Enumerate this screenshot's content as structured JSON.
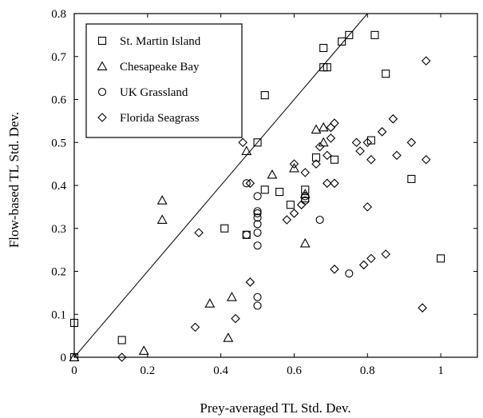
{
  "chart_data": {
    "type": "scatter",
    "xlabel": "Prey-averaged TL Std. Dev.",
    "ylabel": "Flow-based TL Std. Dev.",
    "xlim": [
      0,
      1.1
    ],
    "ylim": [
      0,
      0.8
    ],
    "xticks": [
      "0",
      "0.2",
      "0.4",
      "0.6",
      "0.8",
      "1"
    ],
    "yticks": [
      "0",
      "0.1",
      "0.2",
      "0.3",
      "0.4",
      "0.5",
      "0.6",
      "0.7",
      "0.8"
    ],
    "grid": false,
    "legend_position": "top-left",
    "reference_line": {
      "type": "y=x"
    },
    "series": [
      {
        "name": "St. Martin Island",
        "marker": "square",
        "points": [
          [
            0.0,
            0.0
          ],
          [
            0.0,
            0.08
          ],
          [
            0.13,
            0.04
          ],
          [
            0.41,
            0.3
          ],
          [
            0.47,
            0.285
          ],
          [
            0.5,
            0.5
          ],
          [
            0.52,
            0.61
          ],
          [
            0.52,
            0.39
          ],
          [
            0.56,
            0.385
          ],
          [
            0.59,
            0.355
          ],
          [
            0.63,
            0.39
          ],
          [
            0.63,
            0.37
          ],
          [
            0.66,
            0.465
          ],
          [
            0.68,
            0.72
          ],
          [
            0.68,
            0.675
          ],
          [
            0.69,
            0.675
          ],
          [
            0.71,
            0.46
          ],
          [
            0.73,
            0.735
          ],
          [
            0.75,
            0.75
          ],
          [
            0.81,
            0.505
          ],
          [
            0.82,
            0.75
          ],
          [
            0.85,
            0.66
          ],
          [
            0.92,
            0.415
          ],
          [
            1.0,
            0.23
          ]
        ]
      },
      {
        "name": "Chesapeake Bay",
        "marker": "triangle",
        "points": [
          [
            0.0,
            0.0
          ],
          [
            0.19,
            0.015
          ],
          [
            0.24,
            0.365
          ],
          [
            0.24,
            0.32
          ],
          [
            0.37,
            0.125
          ],
          [
            0.42,
            0.045
          ],
          [
            0.43,
            0.14
          ],
          [
            0.47,
            0.48
          ],
          [
            0.54,
            0.425
          ],
          [
            0.6,
            0.44
          ],
          [
            0.63,
            0.38
          ],
          [
            0.63,
            0.265
          ],
          [
            0.66,
            0.53
          ],
          [
            0.68,
            0.535
          ],
          [
            0.68,
            0.5
          ]
        ]
      },
      {
        "name": "UK Grassland",
        "marker": "circle",
        "points": [
          [
            0.47,
            0.405
          ],
          [
            0.47,
            0.285
          ],
          [
            0.5,
            0.375
          ],
          [
            0.5,
            0.34
          ],
          [
            0.5,
            0.335
          ],
          [
            0.5,
            0.325
          ],
          [
            0.5,
            0.31
          ],
          [
            0.5,
            0.29
          ],
          [
            0.5,
            0.26
          ],
          [
            0.5,
            0.14
          ],
          [
            0.5,
            0.12
          ],
          [
            0.63,
            0.375
          ],
          [
            0.63,
            0.365
          ],
          [
            0.67,
            0.32
          ],
          [
            0.75,
            0.195
          ]
        ]
      },
      {
        "name": "Florida Seagrass",
        "marker": "diamond",
        "points": [
          [
            0.13,
            0.0
          ],
          [
            0.33,
            0.07
          ],
          [
            0.34,
            0.29
          ],
          [
            0.44,
            0.09
          ],
          [
            0.46,
            0.5
          ],
          [
            0.48,
            0.175
          ],
          [
            0.48,
            0.405
          ],
          [
            0.58,
            0.32
          ],
          [
            0.6,
            0.45
          ],
          [
            0.6,
            0.335
          ],
          [
            0.62,
            0.355
          ],
          [
            0.63,
            0.43
          ],
          [
            0.66,
            0.45
          ],
          [
            0.67,
            0.49
          ],
          [
            0.69,
            0.47
          ],
          [
            0.69,
            0.405
          ],
          [
            0.7,
            0.535
          ],
          [
            0.7,
            0.51
          ],
          [
            0.71,
            0.545
          ],
          [
            0.71,
            0.405
          ],
          [
            0.71,
            0.205
          ],
          [
            0.77,
            0.5
          ],
          [
            0.78,
            0.48
          ],
          [
            0.79,
            0.215
          ],
          [
            0.8,
            0.35
          ],
          [
            0.8,
            0.5
          ],
          [
            0.81,
            0.23
          ],
          [
            0.81,
            0.46
          ],
          [
            0.84,
            0.525
          ],
          [
            0.85,
            0.24
          ],
          [
            0.87,
            0.555
          ],
          [
            0.88,
            0.47
          ],
          [
            0.92,
            0.5
          ],
          [
            0.95,
            0.115
          ],
          [
            0.96,
            0.46
          ],
          [
            0.96,
            0.69
          ]
        ]
      }
    ]
  }
}
